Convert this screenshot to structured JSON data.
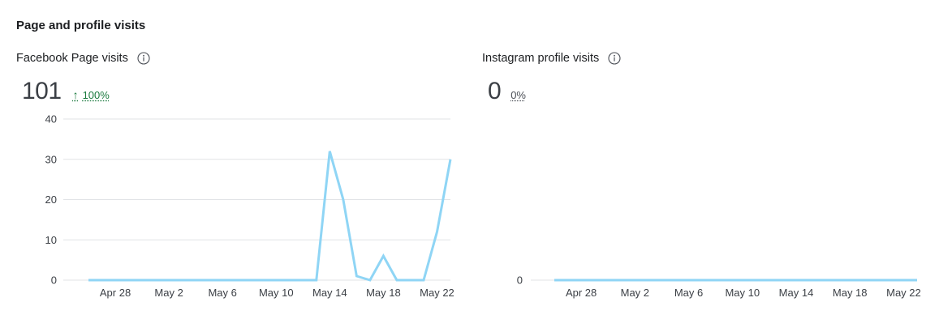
{
  "section": {
    "title": "Page and profile visits"
  },
  "panels": [
    {
      "title": "Facebook Page visits",
      "value": "101",
      "change": "100%",
      "change_direction": "up",
      "info_icon": "info-circle-icon"
    },
    {
      "title": "Instagram profile visits",
      "value": "0",
      "change": "0%",
      "change_direction": "none",
      "info_icon": "info-circle-icon"
    }
  ],
  "colors": {
    "line": "#8fd5f5",
    "grid": "#e1e3e6",
    "up": "#1b7a3e"
  },
  "chart_data": [
    {
      "type": "line",
      "title": "Facebook Page visits",
      "x": [
        "Apr 26",
        "Apr 27",
        "Apr 28",
        "Apr 29",
        "Apr 30",
        "May 1",
        "May 2",
        "May 3",
        "May 4",
        "May 5",
        "May 6",
        "May 7",
        "May 8",
        "May 9",
        "May 10",
        "May 11",
        "May 12",
        "May 13",
        "May 14",
        "May 15",
        "May 16",
        "May 17",
        "May 18",
        "May 19",
        "May 20",
        "May 21",
        "May 22",
        "May 23"
      ],
      "values": [
        0,
        0,
        0,
        0,
        0,
        0,
        0,
        0,
        0,
        0,
        0,
        0,
        0,
        0,
        0,
        0,
        0,
        0,
        32,
        20,
        1,
        0,
        6,
        0,
        0,
        0,
        12,
        30
      ],
      "x_tick_labels": [
        "Apr 28",
        "May 2",
        "May 6",
        "May 10",
        "May 14",
        "May 18",
        "May 22"
      ],
      "y_ticks": [
        0,
        10,
        20,
        30,
        40
      ],
      "ylim": [
        0,
        40
      ],
      "grid": true
    },
    {
      "type": "line",
      "title": "Instagram profile visits",
      "x": [
        "Apr 26",
        "Apr 27",
        "Apr 28",
        "Apr 29",
        "Apr 30",
        "May 1",
        "May 2",
        "May 3",
        "May 4",
        "May 5",
        "May 6",
        "May 7",
        "May 8",
        "May 9",
        "May 10",
        "May 11",
        "May 12",
        "May 13",
        "May 14",
        "May 15",
        "May 16",
        "May 17",
        "May 18",
        "May 19",
        "May 20",
        "May 21",
        "May 22",
        "May 23"
      ],
      "values": [
        0,
        0,
        0,
        0,
        0,
        0,
        0,
        0,
        0,
        0,
        0,
        0,
        0,
        0,
        0,
        0,
        0,
        0,
        0,
        0,
        0,
        0,
        0,
        0,
        0,
        0,
        0,
        0
      ],
      "x_tick_labels": [
        "Apr 28",
        "May 2",
        "May 6",
        "May 10",
        "May 14",
        "May 18",
        "May 22"
      ],
      "y_ticks": [
        0
      ],
      "grid": true
    }
  ]
}
